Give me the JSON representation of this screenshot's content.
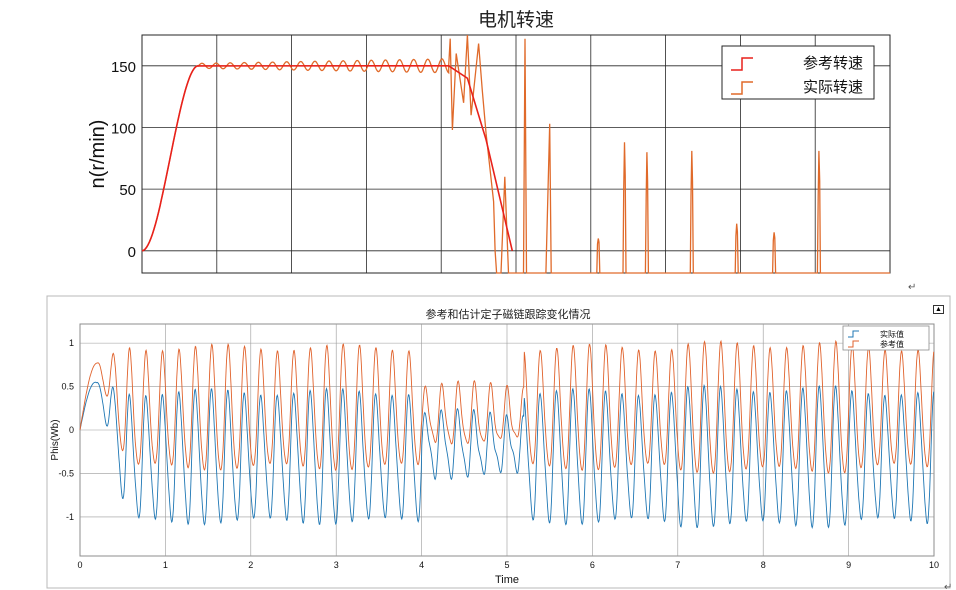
{
  "paragraph_mark": "↵",
  "expand_glyph": "▲",
  "chart_data": [
    {
      "type": "line",
      "title": "电机转速",
      "ylabel": "n(r/min)",
      "xlabel": "",
      "ylim": [
        -18,
        175
      ],
      "xlim": [
        0,
        10
      ],
      "yticks": [
        0,
        50,
        100,
        150
      ],
      "ytick_labels": [
        "0",
        "50",
        "100",
        "150"
      ],
      "xtick_labels_shown": false,
      "grid": true,
      "legend_position": "top-right",
      "series": [
        {
          "name": "参考转速",
          "color": "#e8211b"
        },
        {
          "name": "实际转速",
          "color": "#e06a2a"
        }
      ],
      "reference_speed": {
        "ramp_start": [
          0,
          0
        ],
        "ramp_end": [
          0.75,
          150
        ],
        "hold_until": 4.1,
        "drop_points": [
          [
            4.1,
            150
          ],
          [
            4.35,
            140
          ],
          [
            4.6,
            90
          ],
          [
            4.95,
            0
          ]
        ]
      },
      "spikes": [
        {
          "x": 5.12,
          "y": 172
        },
        {
          "x": 5.45,
          "y": 103
        },
        {
          "x": 6.1,
          "y": 10
        },
        {
          "x": 6.45,
          "y": 88
        },
        {
          "x": 6.75,
          "y": 80
        },
        {
          "x": 7.35,
          "y": 81
        },
        {
          "x": 7.95,
          "y": 22
        },
        {
          "x": 8.45,
          "y": 15
        },
        {
          "x": 9.05,
          "y": 81
        }
      ]
    },
    {
      "type": "line",
      "title": "参考和估计定子磁链跟踪变化情况",
      "xlabel": "Time",
      "ylabel": "Phis(Wb)",
      "xlim": [
        0,
        10
      ],
      "ylim": [
        -1.45,
        1.22
      ],
      "xticks": [
        0,
        1,
        2,
        3,
        4,
        5,
        6,
        7,
        8,
        9,
        10
      ],
      "xtick_labels": [
        "0",
        "1",
        "2",
        "3",
        "4",
        "5",
        "6",
        "7",
        "8",
        "9",
        "10"
      ],
      "yticks": [
        -1,
        -0.5,
        0,
        0.5,
        1
      ],
      "ytick_labels": [
        "-1",
        "-0.5",
        "0",
        "0.5",
        "1"
      ],
      "grid": true,
      "legend_position": "top-right",
      "series": [
        {
          "name": "实际值",
          "color": "#1f77b4",
          "start": [
            0,
            0
          ],
          "first_peak": [
            0.18,
            0.55
          ],
          "cycles_per_unit": 5.2,
          "offset": -0.3,
          "amplitude": 0.75
        },
        {
          "name": "参考值",
          "color": "#e0622c",
          "start": [
            0,
            0
          ],
          "first_peak": [
            0.2,
            0.77
          ],
          "cycles_per_unit": 5.2,
          "offset": 0.2,
          "amplitude": 0.7
        }
      ]
    }
  ]
}
